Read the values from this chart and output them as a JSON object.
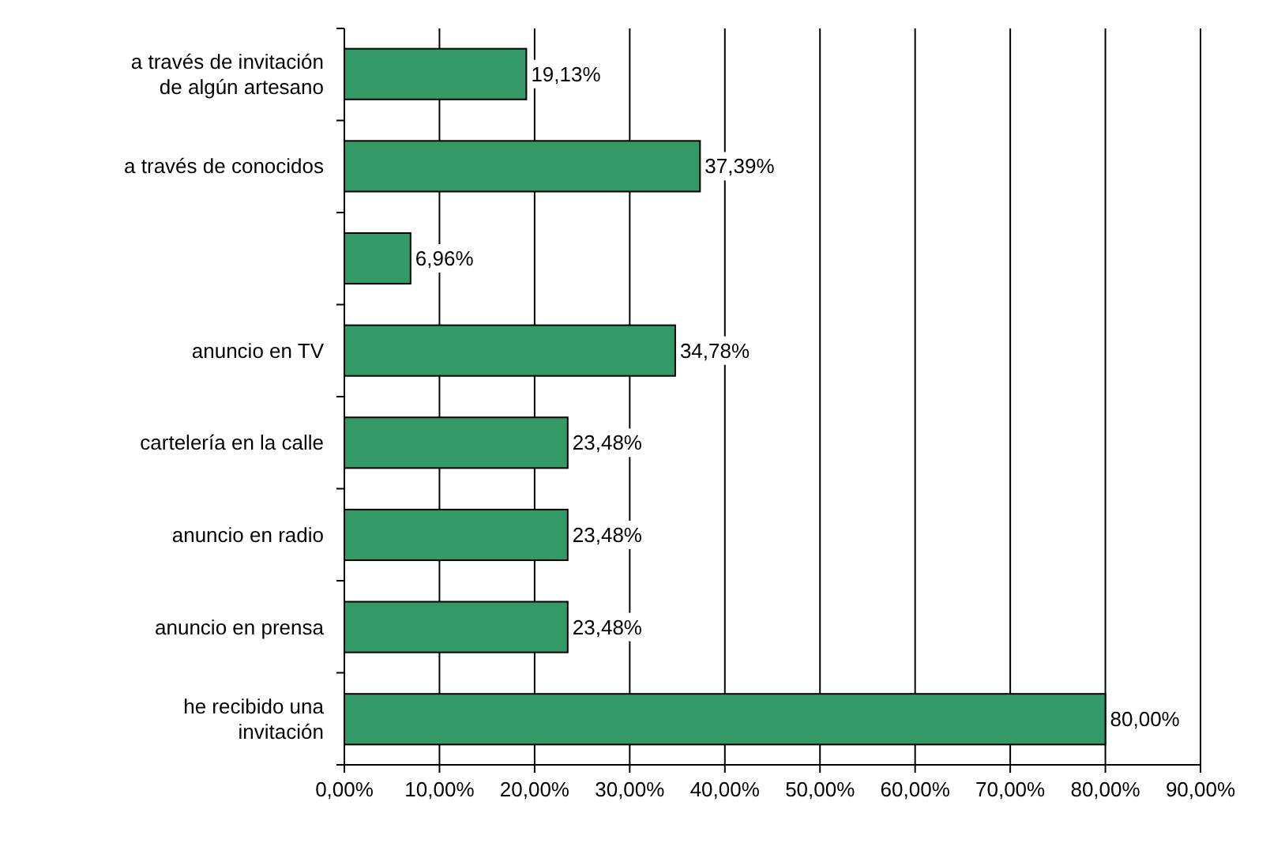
{
  "chart_data": {
    "type": "bar",
    "orientation": "horizontal",
    "categories": [
      "a través de invitación de algún artesano",
      "a través de conocidos",
      null,
      "anuncio en TV",
      "cartelería en la calle",
      "anuncio en radio",
      "anuncio en prensa",
      "he recibido una invitación"
    ],
    "values": [
      19.13,
      37.39,
      6.96,
      34.78,
      23.48,
      23.48,
      23.48,
      80.0
    ],
    "value_labels": [
      "19,13%",
      "37,39%",
      "6,96%",
      "34,78%",
      "23,48%",
      "23,48%",
      "23,48%",
      "80,00%"
    ],
    "color": "#339966",
    "xlim": [
      0,
      90
    ],
    "xticks": [
      {
        "value": 0,
        "label": "0,00%"
      },
      {
        "value": 10,
        "label": "10,00%"
      },
      {
        "value": 20,
        "label": "20,00%"
      },
      {
        "value": 30,
        "label": "30,00%"
      },
      {
        "value": 40,
        "label": "40,00%"
      },
      {
        "value": 50,
        "label": "50,00%"
      },
      {
        "value": 60,
        "label": "60,00%"
      },
      {
        "value": 70,
        "label": "70,00%"
      },
      {
        "value": 80,
        "label": "80,00%"
      },
      {
        "value": 90,
        "label": "90,00%"
      }
    ],
    "grid": "x"
  }
}
